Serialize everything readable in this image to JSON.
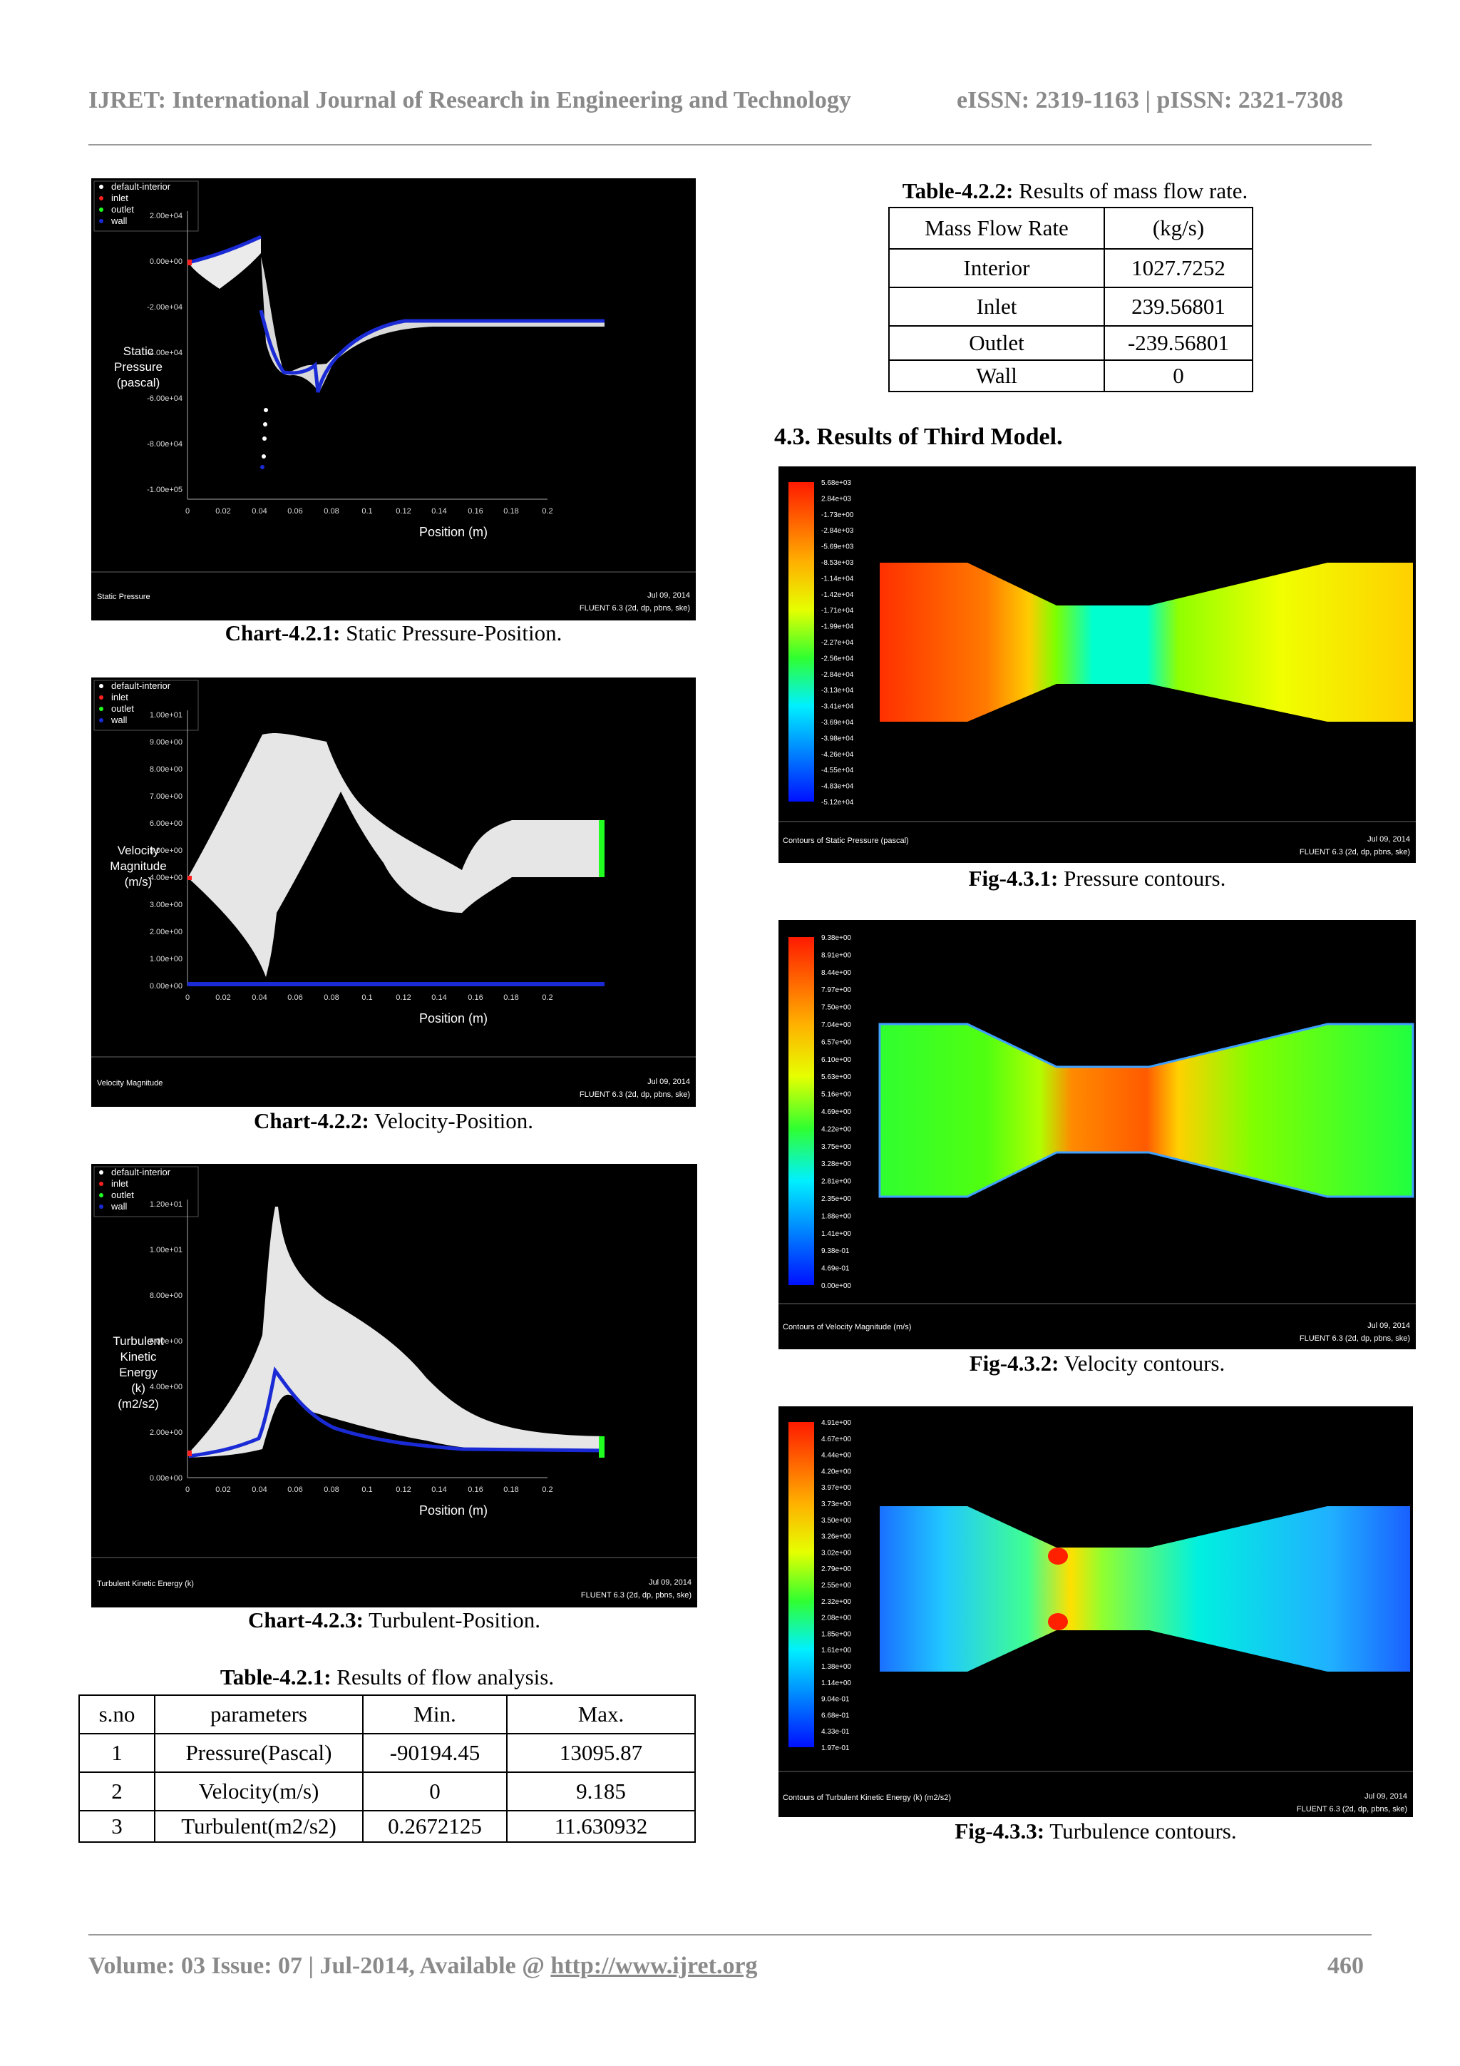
{
  "header": {
    "journal": "IJRET: International Journal of Research in Engineering and Technology",
    "issn": "eISSN: 2319-1163 | pISSN: 2321-7308"
  },
  "footer": {
    "prefix": "Volume: 03 Issue: 07 | Jul-2014, Available @ ",
    "link": "http://www.ijret.org",
    "page": "460"
  },
  "colors": {
    "background_plot": "#000000",
    "wall": "#1a2bd6",
    "interior": "#ffffff",
    "inlet": "#ff2020",
    "outlet": "#20ff20"
  },
  "legend_items": [
    "default-interior",
    "inlet",
    "outlet",
    "wall"
  ],
  "fluent_stamp": {
    "date": "Jul 09, 2014",
    "version": "FLUENT 6.3 (2d, dp, pbns, ske)"
  },
  "charts": [
    {
      "caption_label": "Chart-4.2.1:",
      "caption_text": "Static Pressure-Position.",
      "ylabel": [
        "Static",
        "Pressure",
        "(pascal)"
      ],
      "xlabel": "Position (m)",
      "footer_title": "Static Pressure",
      "yticks": [
        "2.00e+04",
        "0.00e+00",
        "-2.00e+04",
        "-4.00e+04",
        "-6.00e+04",
        "-8.00e+04",
        "-1.00e+05"
      ],
      "xticks": [
        "0",
        "0.02",
        "0.04",
        "0.06",
        "0.08",
        "0.1",
        "0.12",
        "0.14",
        "0.16",
        "0.18",
        "0.2"
      ]
    },
    {
      "caption_label": "Chart-4.2.2:",
      "caption_text": "Velocity-Position.",
      "ylabel": [
        "Velocity",
        "Magnitude",
        "(m/s)"
      ],
      "xlabel": "Position (m)",
      "footer_title": "Velocity Magnitude",
      "yticks": [
        "1.00e+01",
        "9.00e+00",
        "8.00e+00",
        "7.00e+00",
        "6.00e+00",
        "5.00e+00",
        "4.00e+00",
        "3.00e+00",
        "2.00e+00",
        "1.00e+00",
        "0.00e+00"
      ],
      "xticks": [
        "0",
        "0.02",
        "0.04",
        "0.06",
        "0.08",
        "0.1",
        "0.12",
        "0.14",
        "0.16",
        "0.18",
        "0.2"
      ]
    },
    {
      "caption_label": "Chart-4.2.3:",
      "caption_text": "Turbulent-Position.",
      "ylabel": [
        "Turbulent",
        "Kinetic",
        "Energy",
        "(k)",
        "(m2/s2)"
      ],
      "xlabel": "Position (m)",
      "footer_title": "Turbulent Kinetic Energy (k)",
      "yticks": [
        "1.20e+01",
        "1.00e+01",
        "8.00e+00",
        "6.00e+00",
        "4.00e+00",
        "2.00e+00",
        "0.00e+00"
      ],
      "xticks": [
        "0",
        "0.02",
        "0.04",
        "0.06",
        "0.08",
        "0.1",
        "0.12",
        "0.14",
        "0.16",
        "0.18",
        "0.2"
      ]
    }
  ],
  "table_421": {
    "caption_label": "Table-4.2.1:",
    "caption_text": "Results of flow analysis.",
    "header": [
      "s.no",
      "parameters",
      "Min.",
      "Max."
    ],
    "rows": [
      [
        "1",
        "Pressure(Pascal)",
        "-90194.45",
        "13095.87"
      ],
      [
        "2",
        "Velocity(m/s)",
        "0",
        "9.185"
      ],
      [
        "3",
        "Turbulent(m2/s2)",
        "0.2672125",
        "11.630932"
      ]
    ]
  },
  "table_422": {
    "caption_label": "Table-4.2.2:",
    "caption_text": "Results of mass flow rate.",
    "header": [
      "Mass Flow Rate",
      "(kg/s)"
    ],
    "rows": [
      [
        "Interior",
        "1027.7252"
      ],
      [
        "Inlet",
        "239.56801"
      ],
      [
        "Outlet",
        "-239.56801"
      ],
      [
        "Wall",
        "0"
      ]
    ]
  },
  "section": {
    "title": "4.3. Results of Third Model."
  },
  "contours": [
    {
      "caption_label": "Fig-4.3.1:",
      "caption_text": "Pressure contours.",
      "footer_title": "Contours of Static Pressure (pascal)",
      "legend": [
        "5.68e+03",
        "2.84e+03",
        "-1.73e+00",
        "-2.84e+03",
        "-5.69e+03",
        "-8.53e+03",
        "-1.14e+04",
        "-1.42e+04",
        "-1.71e+04",
        "-1.99e+04",
        "-2.27e+04",
        "-2.56e+04",
        "-2.84e+04",
        "-3.13e+04",
        "-3.41e+04",
        "-3.69e+04",
        "-3.98e+04",
        "-4.26e+04",
        "-4.55e+04",
        "-4.83e+04",
        "-5.12e+04"
      ]
    },
    {
      "caption_label": "Fig-4.3.2:",
      "caption_text": "Velocity contours.",
      "footer_title": "Contours of Velocity Magnitude (m/s)",
      "legend": [
        "9.38e+00",
        "8.91e+00",
        "8.44e+00",
        "7.97e+00",
        "7.50e+00",
        "7.04e+00",
        "6.57e+00",
        "6.10e+00",
        "5.63e+00",
        "5.16e+00",
        "4.69e+00",
        "4.22e+00",
        "3.75e+00",
        "3.28e+00",
        "2.81e+00",
        "2.35e+00",
        "1.88e+00",
        "1.41e+00",
        "9.38e-01",
        "4.69e-01",
        "0.00e+00"
      ]
    },
    {
      "caption_label": "Fig-4.3.3:",
      "caption_text": "Turbulence contours.",
      "footer_title": "Contours of Turbulent Kinetic Energy (k) (m2/s2)",
      "legend": [
        "4.91e+00",
        "4.67e+00",
        "4.44e+00",
        "4.20e+00",
        "3.97e+00",
        "3.73e+00",
        "3.50e+00",
        "3.26e+00",
        "3.02e+00",
        "2.79e+00",
        "2.55e+00",
        "2.32e+00",
        "2.08e+00",
        "1.85e+00",
        "1.61e+00",
        "1.38e+00",
        "1.14e+00",
        "9.04e-01",
        "6.68e-01",
        "4.33e-01",
        "1.97e-01"
      ]
    }
  ]
}
